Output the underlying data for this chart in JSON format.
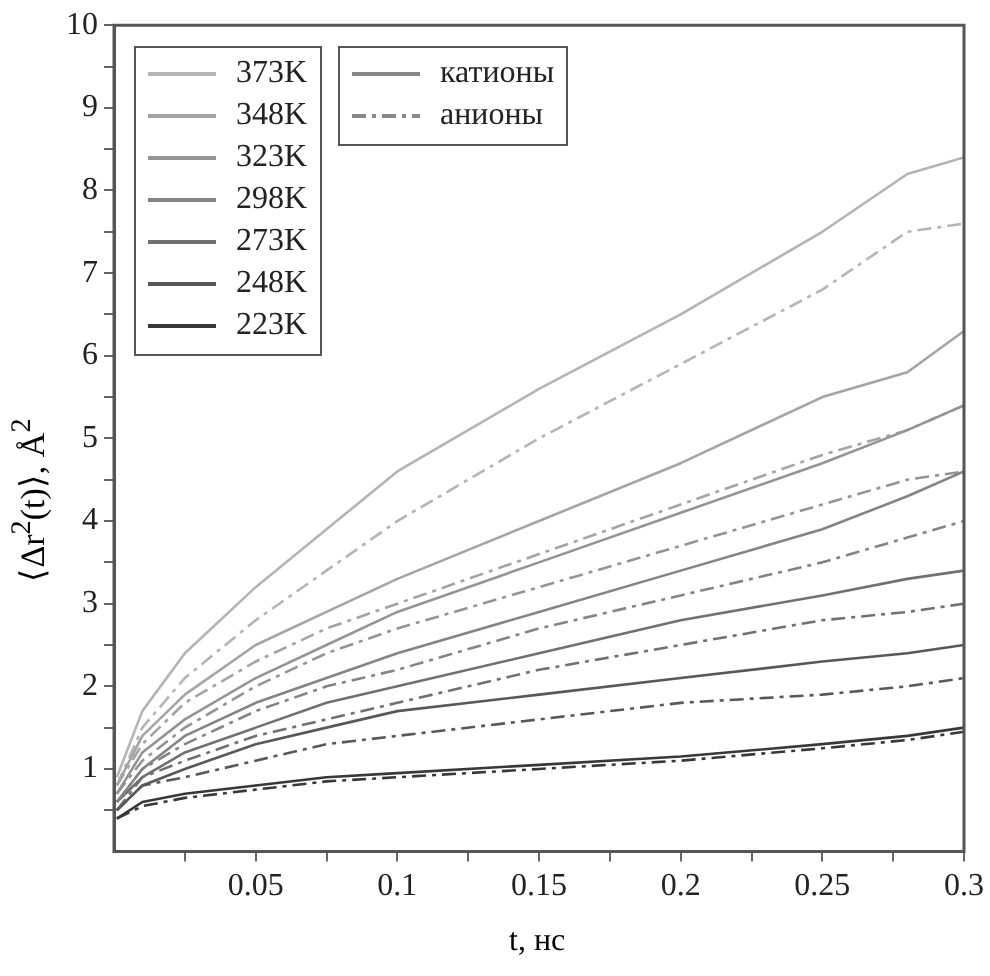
{
  "chart_data": {
    "type": "line",
    "xlabel": "t, нс",
    "ylabel": "⟨Δr$^{2}$(t)⟩, Å$^{2}$",
    "x": [
      0.001,
      0.01,
      0.025,
      0.05,
      0.075,
      0.1,
      0.15,
      0.2,
      0.25,
      0.28,
      0.3
    ],
    "xlim": [
      0,
      0.3
    ],
    "ylim": [
      0,
      10
    ],
    "xticks": [
      {
        "value": 0.025,
        "label": null
      },
      0.05,
      {
        "value": 0.075,
        "label": null
      },
      0.1,
      {
        "value": 0.125,
        "label": null
      },
      0.15,
      {
        "value": 0.175,
        "label": null
      },
      0.2,
      {
        "value": 0.225,
        "label": null
      },
      0.25,
      {
        "value": 0.275,
        "label": null
      },
      0.3
    ],
    "yticks": [
      {
        "value": 0.5,
        "label": null
      },
      1,
      {
        "value": 1.5,
        "label": null
      },
      2,
      {
        "value": 2.5,
        "label": null
      },
      3,
      {
        "value": 3.5,
        "label": null
      },
      4,
      {
        "value": 4.5,
        "label": null
      },
      5,
      {
        "value": 5.5,
        "label": null
      },
      6,
      {
        "value": 6.5,
        "label": null
      },
      7,
      {
        "value": 7.5,
        "label": null
      },
      8,
      {
        "value": 8.5,
        "label": null
      },
      9,
      {
        "value": 9.5,
        "label": null
      },
      10
    ],
    "legend": "top left",
    "marker": "none",
    "annotations": [
      "катионы",
      "анионы"
    ],
    "series": [
      {
        "name": "373K",
        "color": "#b4b4b4",
        "line_style": "solid",
        "values": [
          0.9,
          1.7,
          2.4,
          3.2,
          3.9,
          4.6,
          5.6,
          6.5,
          7.5,
          8.2,
          8.4
        ]
      },
      {
        "name": "348K",
        "color": "#a4a4a4",
        "line_style": "solid",
        "values": [
          0.8,
          1.4,
          1.9,
          2.5,
          2.9,
          3.3,
          4.0,
          4.7,
          5.5,
          5.8,
          6.3
        ]
      },
      {
        "name": "323K",
        "color": "#949494",
        "line_style": "solid",
        "values": [
          0.7,
          1.2,
          1.6,
          2.1,
          2.5,
          2.9,
          3.5,
          4.1,
          4.7,
          5.1,
          5.4
        ]
      },
      {
        "name": "298K",
        "color": "#848484",
        "line_style": "solid",
        "values": [
          0.6,
          1.0,
          1.4,
          1.8,
          2.1,
          2.4,
          2.9,
          3.4,
          3.9,
          4.3,
          4.6
        ]
      },
      {
        "name": "273K",
        "color": "#707070",
        "line_style": "solid",
        "values": [
          0.6,
          0.9,
          1.2,
          1.5,
          1.8,
          2.0,
          2.4,
          2.8,
          3.1,
          3.3,
          3.4
        ]
      },
      {
        "name": "248K",
        "color": "#585858",
        "line_style": "solid",
        "values": [
          0.5,
          0.8,
          1.0,
          1.3,
          1.5,
          1.7,
          1.9,
          2.1,
          2.3,
          2.4,
          2.5
        ]
      },
      {
        "name": "223K",
        "color": "#383838",
        "line_style": "solid",
        "values": [
          0.4,
          0.6,
          0.7,
          0.8,
          0.9,
          0.95,
          1.05,
          1.15,
          1.3,
          1.4,
          1.5
        ]
      },
      {
        "color": "#b4b4b4",
        "line_style": "dashed",
        "values": [
          0.8,
          1.5,
          2.1,
          2.8,
          3.4,
          4.0,
          5.0,
          5.9,
          6.8,
          7.5,
          7.6
        ]
      },
      {
        "color": "#a4a4a4",
        "line_style": "dashed",
        "values": [
          0.8,
          1.3,
          1.8,
          2.3,
          2.7,
          3.0,
          3.6,
          4.2,
          4.8,
          5.1,
          5.4
        ]
      },
      {
        "color": "#949494",
        "line_style": "dashed",
        "values": [
          0.7,
          1.1,
          1.5,
          2.0,
          2.4,
          2.7,
          3.2,
          3.7,
          4.2,
          4.5,
          4.6
        ]
      },
      {
        "color": "#848484",
        "line_style": "dashed",
        "values": [
          0.6,
          1.0,
          1.3,
          1.7,
          2.0,
          2.2,
          2.7,
          3.1,
          3.5,
          3.8,
          4.0
        ]
      },
      {
        "color": "#707070",
        "line_style": "dashed",
        "values": [
          0.5,
          0.9,
          1.1,
          1.4,
          1.6,
          1.8,
          2.2,
          2.5,
          2.8,
          2.9,
          3.0
        ]
      },
      {
        "color": "#585858",
        "line_style": "dashed",
        "values": [
          0.5,
          0.8,
          0.9,
          1.1,
          1.3,
          1.4,
          1.6,
          1.8,
          1.9,
          2.0,
          2.1
        ]
      },
      {
        "color": "#383838",
        "line_style": "dashed",
        "values": [
          0.4,
          0.55,
          0.65,
          0.75,
          0.85,
          0.9,
          1.0,
          1.1,
          1.25,
          1.35,
          1.45
        ]
      }
    ]
  }
}
